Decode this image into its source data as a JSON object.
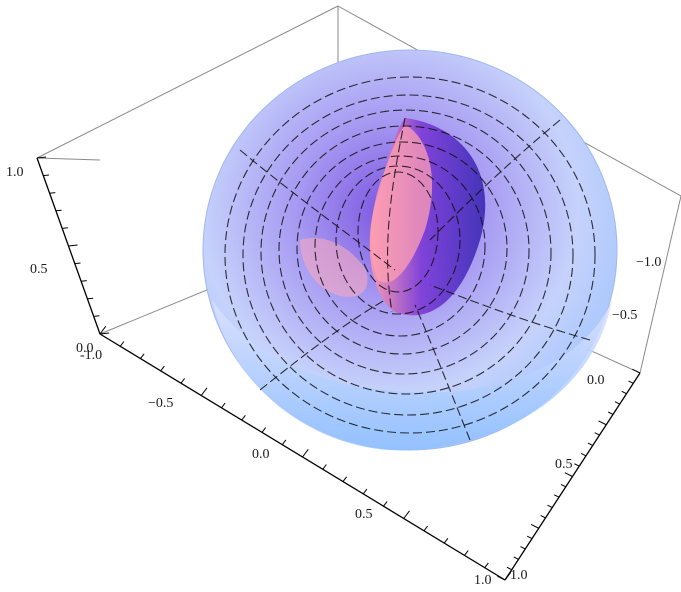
{
  "chart_data": {
    "type": "surface3d",
    "title": "",
    "xlabel": "",
    "ylabel": "",
    "zlabel": "",
    "surface": "torus-like parametric surface (horn/spindle shape)",
    "x_axis": {
      "range": [
        -1.0,
        1.0
      ],
      "ticks": [
        -1.0,
        -0.5,
        0.0,
        0.5,
        1.0
      ],
      "tick_labels": [
        "-1.0",
        "−0.5",
        "0.0",
        "0.5",
        "1.0"
      ]
    },
    "y_axis": {
      "range": [
        -1.0,
        1.0
      ],
      "ticks": [
        -1.0,
        -0.5,
        0.0,
        0.5,
        1.0
      ],
      "tick_labels": [
        "−1.0",
        "−0.5",
        "0.0",
        "0.5",
        "1.0"
      ]
    },
    "z_axis": {
      "range": [
        0.0,
        1.0
      ],
      "ticks": [
        0.0,
        0.5,
        1.0
      ],
      "tick_labels": [
        "0.0",
        "0.5",
        "1.0"
      ]
    },
    "colors": {
      "surface_light": "#c8dcff",
      "surface_mid": "#8f8cf0",
      "surface_deep": "#5a3fd0",
      "surface_pink": "#ff9fb0",
      "box": "#8a8a8a"
    },
    "grid": false,
    "legend": "none"
  }
}
